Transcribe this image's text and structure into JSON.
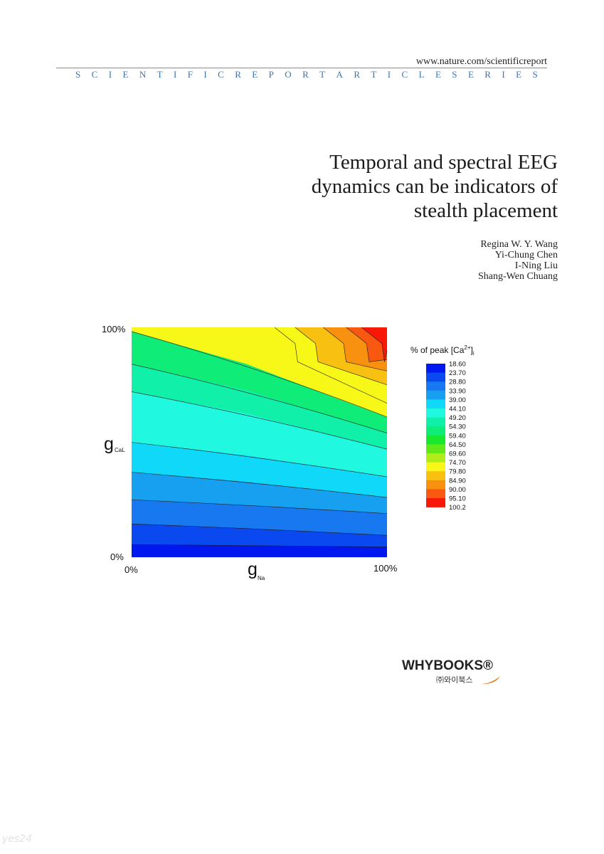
{
  "header": {
    "url": "www.nature.com/scientificreport",
    "series_letters": [
      "S",
      "C",
      "I",
      "E",
      "N",
      "T",
      "I",
      "F",
      "I",
      "C",
      "R",
      "E",
      "P",
      "O",
      "R",
      "T",
      "A",
      "R",
      "T",
      "I",
      "C",
      "L",
      "E",
      "S",
      "E",
      "R",
      "I",
      "E",
      "S"
    ]
  },
  "title_lines": [
    "Temporal and spectral EEG",
    "dynamics can be indicators of",
    "stealth placement"
  ],
  "authors": [
    "Regina W. Y. Wang",
    "Yi-Chung Chen",
    "I-Ning Liu",
    "Shang-Wen Chuang"
  ],
  "chart_data": {
    "type": "heatmap",
    "x": {
      "symbol": "g",
      "subscript": "Na",
      "min_label": "0%",
      "max_label": "100%"
    },
    "y": {
      "symbol": "g",
      "subscript": "CaL",
      "min_label": "0%",
      "max_label": "100%"
    },
    "colorbar": {
      "title_prefix": "% of peak [Ca",
      "title_sup": "2+",
      "title_suffix": "]",
      "title_sub": "i",
      "levels": [
        "18.60",
        "23.70",
        "28.80",
        "33.90",
        "39.00",
        "44.10",
        "49.20",
        "54.30",
        "59.40",
        "64.50",
        "69.60",
        "74.70",
        "79.80",
        "84.90",
        "90.00",
        "95.10",
        "100.2"
      ],
      "colors": [
        "#0018f0",
        "#0a48f0",
        "#1878f0",
        "#18a0f0",
        "#10d8f8",
        "#20f8e0",
        "#10f0a8",
        "#10ec78",
        "#18e830",
        "#60e818",
        "#b0ec18",
        "#f8f818",
        "#f8c010",
        "#f89010",
        "#f85810",
        "#f81808"
      ]
    },
    "contour_level_index_left": [
      7,
      6,
      5,
      4,
      3,
      2,
      1,
      0
    ],
    "contour_level_index_right": [
      10,
      9,
      8,
      7,
      6,
      5,
      4,
      2
    ],
    "corner_bands": [
      {
        "level_index": 11
      },
      {
        "level_index": 12
      },
      {
        "level_index": 13
      },
      {
        "level_index": 14
      },
      {
        "level_index": 15
      }
    ]
  },
  "logo": {
    "name": "WHYBOOKS®",
    "korean": "㈜와이북스"
  },
  "watermark": "yes24"
}
